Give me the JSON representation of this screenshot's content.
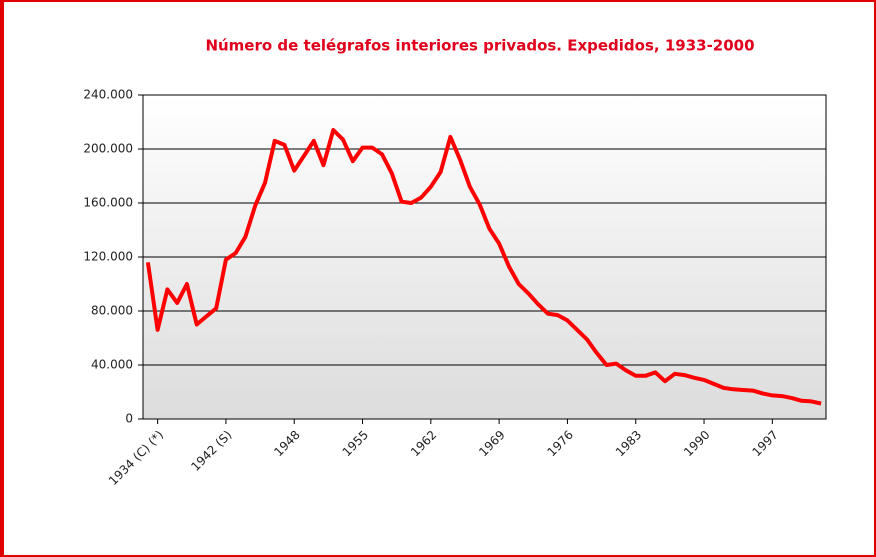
{
  "chart_data": {
    "type": "line",
    "title": "Número de telégrafos interiores privados. Expedidos, 1933-2000",
    "categories": [
      null,
      "1934 (C) (*)",
      null,
      null,
      null,
      null,
      null,
      null,
      "1942 (S)",
      null,
      null,
      null,
      null,
      null,
      null,
      "1948",
      null,
      null,
      null,
      null,
      null,
      null,
      "1955",
      null,
      null,
      null,
      null,
      null,
      null,
      "1962",
      null,
      null,
      null,
      null,
      null,
      null,
      "1969",
      null,
      null,
      null,
      null,
      null,
      null,
      "1976",
      null,
      null,
      null,
      null,
      null,
      null,
      "1983",
      null,
      null,
      null,
      null,
      null,
      null,
      "1990",
      null,
      null,
      null,
      null,
      null,
      null,
      "1997",
      null,
      null,
      null,
      null,
      null
    ],
    "series": [
      {
        "name": "Expedidos",
        "color": "#ff0000",
        "values": [
          116000,
          66000,
          96000,
          86000,
          100000,
          70000,
          76000,
          82000,
          118000,
          123000,
          135000,
          158000,
          175000,
          206000,
          203000,
          184000,
          195000,
          206000,
          188000,
          214000,
          207000,
          191000,
          201000,
          201000,
          196000,
          182000,
          161000,
          160000,
          164000,
          172000,
          183000,
          209000,
          192000,
          172000,
          159000,
          141000,
          130000,
          113000,
          100000,
          93000,
          85000,
          78000,
          77000,
          73000,
          66000,
          59000,
          49000,
          40000,
          41000,
          36000,
          32000,
          32000,
          34500,
          28000,
          33500,
          32500,
          30500,
          29000,
          26000,
          23000,
          22000,
          21500,
          21000,
          19000,
          17500,
          17000,
          15500,
          13500,
          13000,
          11500
        ]
      }
    ],
    "ylim": [
      0,
      240000
    ],
    "yticks": [
      0,
      {
        "value": 40000,
        "label": "40.000"
      },
      {
        "value": 80000,
        "label": "80.000"
      },
      {
        "value": 120000,
        "label": "120.000"
      },
      {
        "value": 160000,
        "label": "160.000"
      },
      {
        "value": 200000,
        "label": "200.000"
      },
      {
        "value": 240000,
        "label": "240.000"
      }
    ],
    "grid": true
  }
}
